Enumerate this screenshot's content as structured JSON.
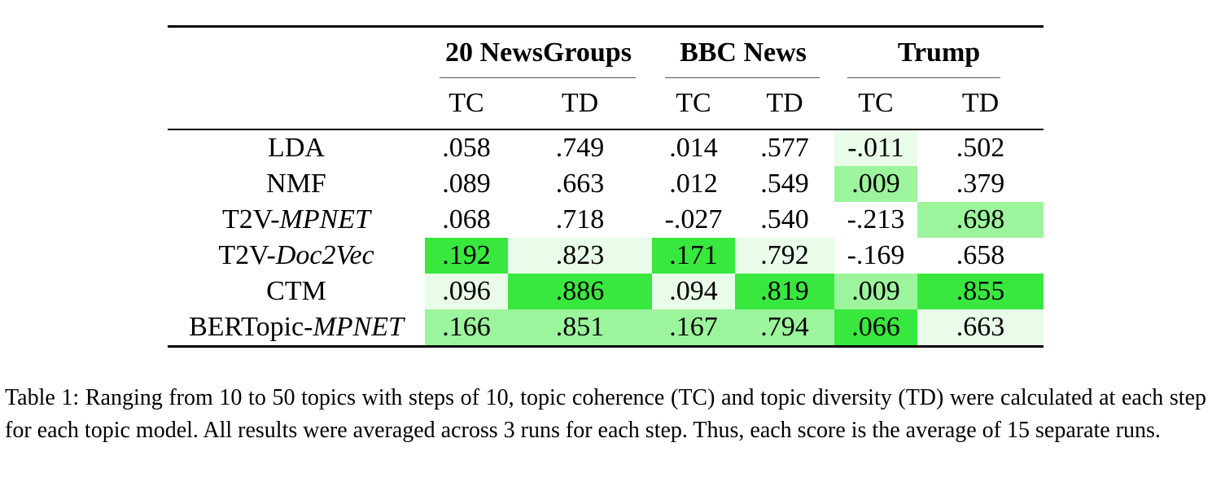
{
  "table": {
    "datasets": [
      "20 NewsGroups",
      "BBC News",
      "Trump"
    ],
    "metrics": [
      "TC",
      "TD",
      "TC",
      "TD",
      "TC",
      "TD"
    ],
    "rows": [
      {
        "model": "LDA",
        "model_suffix": "",
        "values": [
          ".058",
          ".749",
          ".014",
          ".577",
          "-.011",
          ".502"
        ]
      },
      {
        "model": "NMF",
        "model_suffix": "",
        "values": [
          ".089",
          ".663",
          ".012",
          ".549",
          ".009",
          ".379"
        ]
      },
      {
        "model": "T2V-",
        "model_suffix": "MPNET",
        "values": [
          ".068",
          ".718",
          "-.027",
          ".540",
          "-.213",
          ".698"
        ]
      },
      {
        "model": "T2V-",
        "model_suffix": "Doc2Vec",
        "values": [
          ".192",
          ".823",
          ".171",
          ".792",
          "-.169",
          ".658"
        ]
      },
      {
        "model": "CTM",
        "model_suffix": "",
        "values": [
          ".096",
          ".886",
          ".094",
          ".819",
          ".009",
          ".855"
        ]
      },
      {
        "model": "BERTopic-",
        "model_suffix": "MPNET",
        "values": [
          ".166",
          ".851",
          ".167",
          ".794",
          ".066",
          ".663"
        ]
      }
    ],
    "highlight_levels": [
      [
        0,
        0,
        0,
        0,
        1,
        0
      ],
      [
        0,
        0,
        0,
        0,
        2,
        0
      ],
      [
        0,
        0,
        0,
        0,
        0,
        2
      ],
      [
        3,
        1,
        3,
        1,
        0,
        0
      ],
      [
        1,
        3,
        1,
        3,
        2,
        3
      ],
      [
        2,
        2,
        2,
        2,
        3,
        1
      ]
    ],
    "highlight_colors": {
      "0": "#ffffff",
      "1": "#e9fbe9",
      "2": "#9cf59c",
      "3": "#39e83e"
    }
  },
  "caption": "Table 1: Ranging from 10 to 50 topics with steps of 10, topic coherence (TC) and topic diversity (TD) were calculated at each step for each topic model. All results were averaged across 3 runs for each step. Thus, each score is the average of 15 separate runs."
}
